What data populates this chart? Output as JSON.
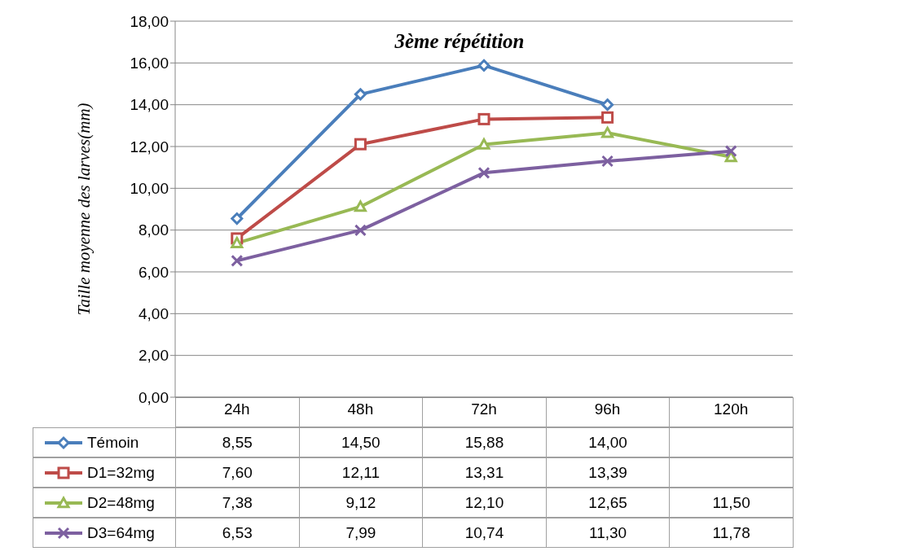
{
  "chart_data": {
    "type": "line",
    "title": "3ème répétition",
    "ylabel": "Taille moyenne des larves(mm)",
    "categories": [
      "24h",
      "48h",
      "72h",
      "96h",
      "120h"
    ],
    "ylim": [
      0,
      18
    ],
    "yticks": [
      {
        "value": 0,
        "label": "0,00"
      },
      {
        "value": 2,
        "label": "2,00"
      },
      {
        "value": 4,
        "label": "4,00"
      },
      {
        "value": 6,
        "label": "6,00"
      },
      {
        "value": 8,
        "label": "8,00"
      },
      {
        "value": 10,
        "label": "10,00"
      },
      {
        "value": 12,
        "label": "12,00"
      },
      {
        "value": 14,
        "label": "14,00"
      },
      {
        "value": 16,
        "label": "16,00"
      },
      {
        "value": 18,
        "label": "18,00"
      }
    ],
    "grid": "y",
    "legend": "bottom left",
    "series": [
      {
        "name": "Témoin",
        "color": "#4a7ebb",
        "marker": "diamond",
        "values": [
          8.55,
          14.5,
          15.88,
          14.0,
          null
        ],
        "value_labels": [
          "8,55",
          "14,50",
          "15,88",
          "14,00",
          null
        ]
      },
      {
        "name": "D1=32mg",
        "color": "#be4b48",
        "marker": "square",
        "values": [
          7.6,
          12.11,
          13.31,
          13.39,
          null
        ],
        "value_labels": [
          "7,60",
          "12,11",
          "13,31",
          "13,39",
          null
        ]
      },
      {
        "name": "D2=48mg",
        "color": "#98b954",
        "marker": "triangle",
        "values": [
          7.38,
          9.12,
          12.1,
          12.65,
          11.5
        ],
        "value_labels": [
          "7,38",
          "9,12",
          "12,10",
          "12,65",
          "11,50"
        ]
      },
      {
        "name": "D3=64mg",
        "color": "#7d60a0",
        "marker": "cross",
        "values": [
          6.53,
          7.99,
          10.74,
          11.3,
          11.78
        ],
        "value_labels": [
          "6,53",
          "7,99",
          "10,74",
          "11,30",
          "11,78"
        ]
      }
    ]
  }
}
